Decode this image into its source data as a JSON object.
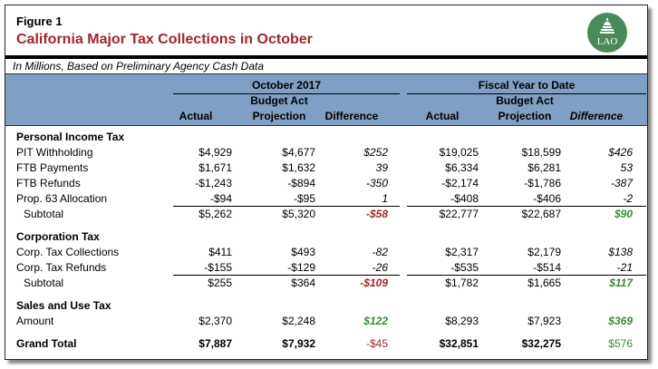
{
  "figure_label": "Figure 1",
  "title": "California Major Tax Collections in October",
  "logo_text": "LAO",
  "subtitle": "In Millions, Based on Preliminary Agency Cash Data",
  "header": {
    "group1": "October 2017",
    "group2": "Fiscal Year to Date",
    "columns": [
      [
        "",
        "Actual"
      ],
      [
        "Budget Act",
        "Projection"
      ],
      [
        "",
        "Difference"
      ],
      [
        "",
        "Actual"
      ],
      [
        "Budget Act",
        "Projection"
      ],
      [
        "",
        "Difference"
      ]
    ]
  },
  "colors": {
    "title": "#a3262a",
    "header_bg": "#7f9fc4",
    "negative": "#a3262a",
    "positive": "#3a8a3a"
  },
  "rows": [
    {
      "type": "section",
      "label": "Personal Income Tax"
    },
    {
      "type": "data",
      "label": "PIT Withholding",
      "values": [
        "$4,929",
        "$4,677",
        "$252",
        "$19,025",
        "$18,599",
        "$426"
      ]
    },
    {
      "type": "data",
      "label": "FTB Payments",
      "values": [
        "$1,671",
        "$1,632",
        "39",
        "$6,334",
        "$6,281",
        "53"
      ]
    },
    {
      "type": "data",
      "label": "FTB Refunds",
      "values": [
        "-$1,243",
        "-$894",
        "-350",
        "-$2,174",
        "-$1,786",
        "-387"
      ]
    },
    {
      "type": "data",
      "label": "Prop. 63 Allocation",
      "values": [
        "-$94",
        "-$95",
        "1",
        "-$408",
        "-$406",
        "-2"
      ]
    },
    {
      "type": "subtotal",
      "label": "Subtotal",
      "values": [
        "$5,262",
        "$5,320",
        "-$58",
        "$22,777",
        "$22,687",
        "$90"
      ]
    },
    {
      "type": "section",
      "label": "Corporation Tax"
    },
    {
      "type": "data",
      "label": "Corp. Tax Collections",
      "values": [
        "$411",
        "$493",
        "-82",
        "$2,317",
        "$2,179",
        "$138"
      ]
    },
    {
      "type": "data",
      "label": "Corp. Tax Refunds",
      "values": [
        "-$155",
        "-$129",
        "-26",
        "-$535",
        "-$514",
        "-21"
      ]
    },
    {
      "type": "subtotal",
      "label": "Subtotal",
      "values": [
        "$255",
        "$364",
        "-$109",
        "$1,782",
        "$1,665",
        "$117"
      ]
    },
    {
      "type": "section",
      "label": "Sales and Use Tax"
    },
    {
      "type": "amount",
      "label": "Amount",
      "values": [
        "$2,370",
        "$2,248",
        "$122",
        "$8,293",
        "$7,923",
        "$369"
      ]
    },
    {
      "type": "total",
      "label": "Grand Total",
      "values": [
        "$7,887",
        "$7,932",
        "-$45",
        "$32,851",
        "$32,275",
        "$576"
      ]
    }
  ]
}
